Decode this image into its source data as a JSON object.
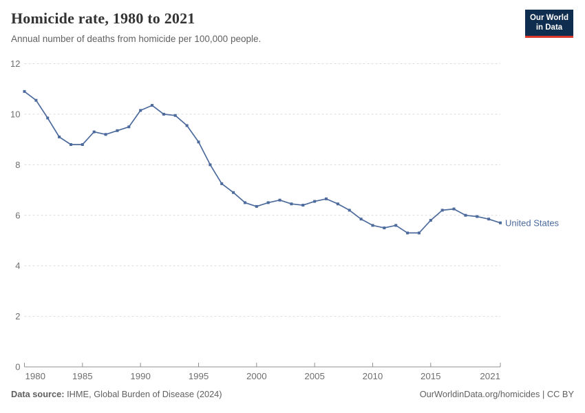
{
  "header": {
    "title": "Homicide rate, 1980 to 2021",
    "subtitle": "Annual number of deaths from homicide per 100,000 people."
  },
  "logo": {
    "line1": "Our World",
    "line2": "in Data",
    "bg_color": "#0f2d4e",
    "accent_color": "#dc382d"
  },
  "chart_data": {
    "type": "line",
    "title": "Homicide rate, 1980 to 2021",
    "xlabel": "",
    "ylabel": "",
    "x": [
      1980,
      1981,
      1982,
      1983,
      1984,
      1985,
      1986,
      1987,
      1988,
      1989,
      1990,
      1991,
      1992,
      1993,
      1994,
      1995,
      1996,
      1997,
      1998,
      1999,
      2000,
      2001,
      2002,
      2003,
      2004,
      2005,
      2006,
      2007,
      2008,
      2009,
      2010,
      2011,
      2012,
      2013,
      2014,
      2015,
      2016,
      2017,
      2018,
      2019,
      2020,
      2021
    ],
    "series": [
      {
        "name": "United States",
        "color": "#4c6a9c",
        "values": [
          10.9,
          10.55,
          9.85,
          9.1,
          8.8,
          8.8,
          9.3,
          9.2,
          9.35,
          9.5,
          10.15,
          10.35,
          10.0,
          9.95,
          9.55,
          8.9,
          8.0,
          7.25,
          6.9,
          6.5,
          6.35,
          6.5,
          6.6,
          6.45,
          6.4,
          6.55,
          6.65,
          6.45,
          6.2,
          5.85,
          5.6,
          5.5,
          5.6,
          5.3,
          5.3,
          5.8,
          6.2,
          6.25,
          6.0,
          5.95,
          5.85,
          5.7
        ]
      }
    ],
    "ylim": [
      0,
      12
    ],
    "yticks": [
      0,
      2,
      4,
      6,
      8,
      10,
      12
    ],
    "xticks": [
      1980,
      1985,
      1990,
      1995,
      2000,
      2005,
      2010,
      2015,
      2021
    ],
    "grid": "horizontal-dashed",
    "legend_position": "end-of-line",
    "colors": {
      "grid": "#dcdcdc",
      "axis": "#8f8f8f",
      "tick_label": "#6e6e6e"
    }
  },
  "footer": {
    "source_label": "Data source:",
    "source_text": " IHME, Global Burden of Disease (2024)",
    "credit": "OurWorldinData.org/homicides | CC BY"
  }
}
